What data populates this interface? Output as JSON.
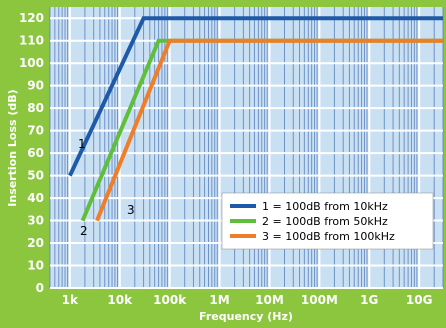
{
  "chart_data": {
    "type": "line",
    "title": "",
    "xlabel": "Frequency (Hz)",
    "ylabel": "Insertion Loss (dB)",
    "x_scale": "log",
    "xlim": [
      400,
      30000000000
    ],
    "ylim": [
      0,
      125
    ],
    "grid": true,
    "legend_position": "bottom-right",
    "x_ticks": [
      "1k",
      "10k",
      "100k",
      "1M",
      "10M",
      "100M",
      "1G",
      "10G"
    ],
    "x_tick_values": [
      1000,
      10000,
      100000,
      1000000,
      10000000,
      100000000,
      1000000000,
      10000000000
    ],
    "y_ticks": [
      "0",
      "10",
      "20",
      "30",
      "40",
      "50",
      "60",
      "70",
      "80",
      "90",
      "100",
      "110",
      "120"
    ],
    "y_tick_values": [
      0,
      10,
      20,
      30,
      40,
      50,
      60,
      70,
      80,
      90,
      100,
      110,
      120
    ],
    "series": [
      {
        "name": "1 = 100dB from 10kHz",
        "label": "1",
        "color": "#1e5aa8",
        "points": [
          [
            1000,
            50
          ],
          [
            30000,
            120
          ],
          [
            30000000000,
            120
          ]
        ]
      },
      {
        "name": "2 = 100dB from 50kHz",
        "label": "2",
        "color": "#5fbf3a",
        "points": [
          [
            1800,
            30
          ],
          [
            60000,
            110
          ],
          [
            30000000000,
            110
          ]
        ]
      },
      {
        "name": "3 = 100dB from 100kHz",
        "label": "3",
        "color": "#f07d28",
        "points": [
          [
            3500,
            30
          ],
          [
            100000,
            110
          ],
          [
            30000000000,
            110
          ]
        ]
      }
    ]
  }
}
